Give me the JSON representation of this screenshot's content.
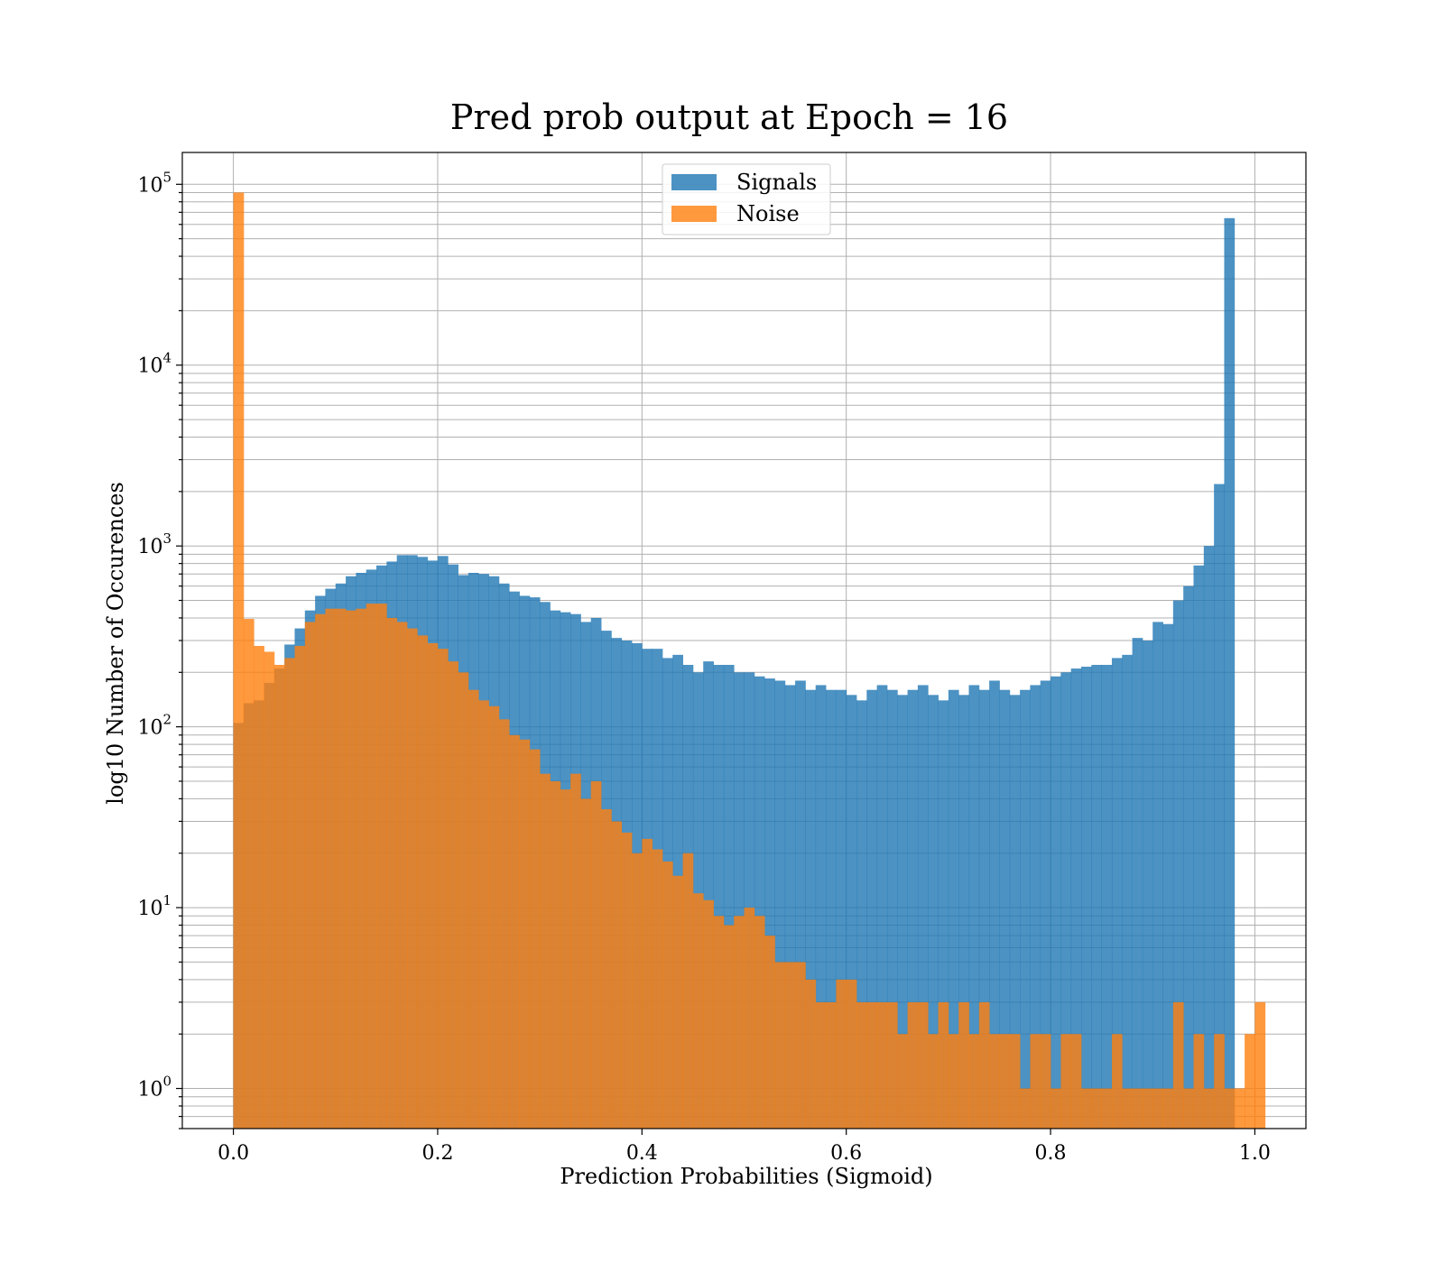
{
  "chart_data": {
    "type": "histogram",
    "title": "Pred prob output at Epoch = 16",
    "xlabel": "Prediction Probabilities (Sigmoid)",
    "ylabel": "log10 Number of Occurences",
    "xlim": [
      -0.05,
      1.05
    ],
    "ylim": [
      0.6,
      150000
    ],
    "yscale": "log",
    "grid": true,
    "legend_position": "upper center",
    "x_ticks": [
      "0.0",
      "0.2",
      "0.4",
      "0.6",
      "0.8",
      "1.0"
    ],
    "y_ticks": [
      {
        "base": "10",
        "exp": "0",
        "value": 1
      },
      {
        "base": "10",
        "exp": "1",
        "value": 10
      },
      {
        "base": "10",
        "exp": "2",
        "value": 100
      },
      {
        "base": "10",
        "exp": "3",
        "value": 1000
      },
      {
        "base": "10",
        "exp": "4",
        "value": 10000
      },
      {
        "base": "10",
        "exp": "5",
        "value": 100000
      }
    ],
    "bin_edges_start": 0.0,
    "bin_width": 0.01,
    "series": [
      {
        "name": "Signals",
        "color": "#1f77b4",
        "opacity": 0.8,
        "values": [
          105,
          135,
          140,
          175,
          210,
          285,
          350,
          440,
          530,
          580,
          620,
          680,
          710,
          740,
          780,
          820,
          890,
          890,
          870,
          830,
          880,
          790,
          690,
          710,
          700,
          680,
          620,
          560,
          530,
          520,
          490,
          440,
          430,
          420,
          380,
          400,
          340,
          310,
          300,
          290,
          270,
          270,
          240,
          250,
          220,
          200,
          230,
          220,
          220,
          200,
          200,
          190,
          185,
          180,
          170,
          180,
          160,
          170,
          160,
          160,
          150,
          140,
          160,
          170,
          160,
          150,
          160,
          170,
          150,
          140,
          160,
          150,
          170,
          160,
          180,
          160,
          150,
          160,
          170,
          180,
          190,
          200,
          210,
          215,
          220,
          220,
          240,
          250,
          310,
          300,
          380,
          370,
          500,
          600,
          780,
          1000,
          2200,
          65000,
          0,
          0,
          0
        ]
      },
      {
        "name": "Noise",
        "color": "#ff7f0e",
        "opacity": 0.8,
        "values": [
          90000,
          395,
          280,
          260,
          220,
          240,
          280,
          380,
          420,
          450,
          450,
          440,
          450,
          480,
          480,
          400,
          380,
          350,
          320,
          290,
          270,
          230,
          200,
          160,
          140,
          130,
          110,
          90,
          85,
          75,
          55,
          50,
          45,
          55,
          40,
          50,
          35,
          30,
          26,
          20,
          24,
          21,
          18,
          15,
          20,
          12,
          11,
          9,
          8,
          9,
          10,
          9,
          7,
          5,
          5,
          5,
          4,
          3,
          3,
          4,
          4,
          3,
          3,
          3,
          3,
          2,
          3,
          3,
          2,
          3,
          2,
          3,
          2,
          3,
          2,
          2,
          2,
          1,
          2,
          2,
          1,
          2,
          2,
          1,
          1,
          1,
          2,
          1,
          1,
          1,
          1,
          1,
          3,
          1,
          2,
          1,
          2,
          1,
          1,
          2,
          3
        ]
      }
    ]
  }
}
